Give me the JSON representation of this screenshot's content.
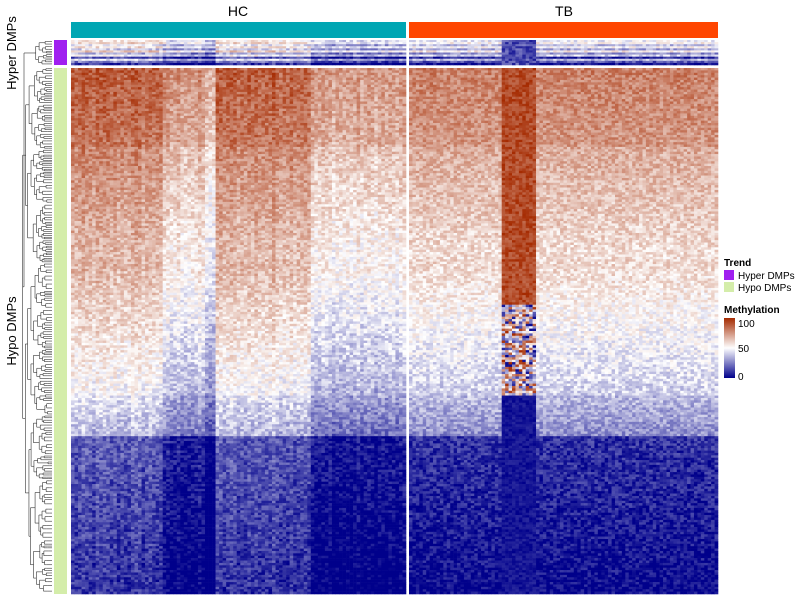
{
  "chart_data": {
    "type": "heatmap",
    "column_groups": [
      {
        "name": "HC",
        "color": "#00a6b3",
        "n_columns": 95
      },
      {
        "name": "TB",
        "color": "#ff4500",
        "n_columns": 90
      }
    ],
    "row_groups": [
      {
        "name": "Hyper DMPs",
        "color": "#a020f0",
        "n_rows": 12
      },
      {
        "name": "Hypo DMPs",
        "color": "#d4edaa",
        "n_rows": 220
      }
    ],
    "trend_legend": {
      "title": "Trend",
      "entries": [
        {
          "label": "Hyper DMPs",
          "color": "#a020f0"
        },
        {
          "label": "Hypo DMPs",
          "color": "#d4edaa"
        }
      ]
    },
    "color_scale": {
      "title": "Methylation",
      "min": 0,
      "mid": 50,
      "max": 100,
      "ticks": [
        "100",
        "50",
        "0"
      ],
      "low_color": "#00008b",
      "mid_color": "#ffffff",
      "high_color": "#a52a00"
    },
    "row_dendrogram": true,
    "column_split_gap": true
  }
}
